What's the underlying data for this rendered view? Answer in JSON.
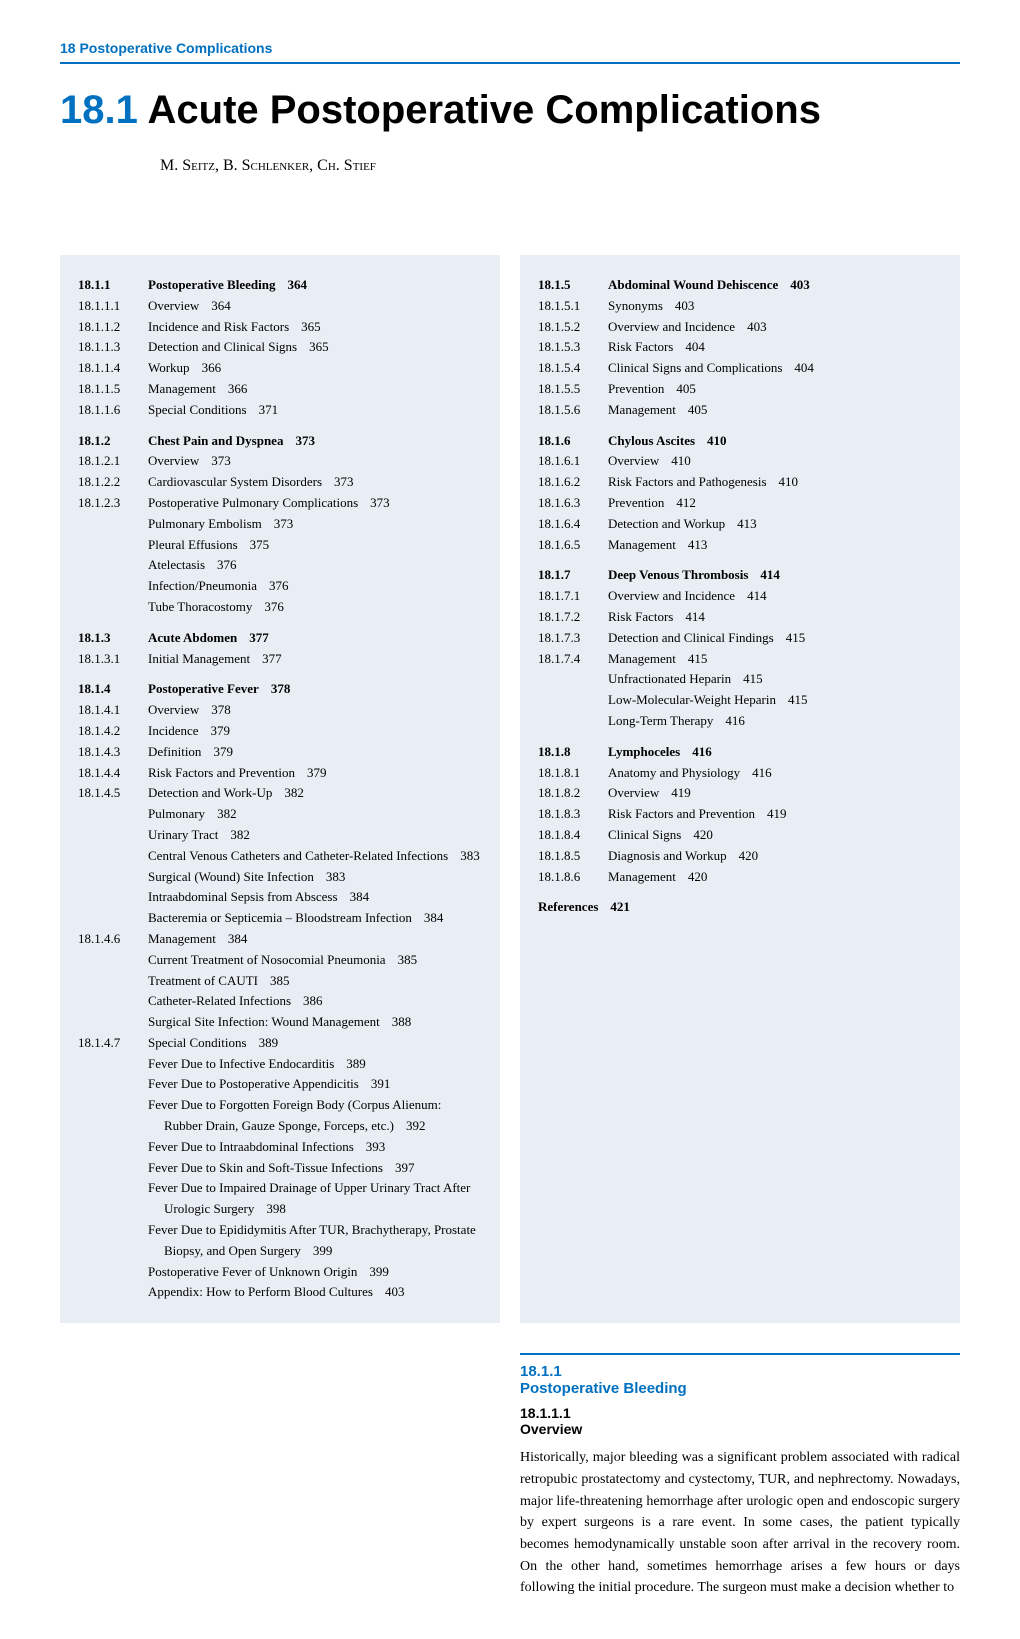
{
  "header": {
    "label": "18 Postoperative Complications"
  },
  "chapter": {
    "number": "18.1",
    "title": "Acute Postoperative Complications",
    "authors": "M. Seitz, B. Schlenker, Ch. Stief"
  },
  "toc_left": [
    {
      "num": "18.1.1",
      "text": "Postoperative Bleeding",
      "page": "364",
      "bold": true
    },
    {
      "num": "18.1.1.1",
      "text": "Overview",
      "page": "364"
    },
    {
      "num": "18.1.1.2",
      "text": "Incidence and Risk Factors",
      "page": "365"
    },
    {
      "num": "18.1.1.3",
      "text": "Detection and Clinical Signs",
      "page": "365"
    },
    {
      "num": "18.1.1.4",
      "text": "Workup",
      "page": "366"
    },
    {
      "num": "18.1.1.5",
      "text": "Management",
      "page": "366"
    },
    {
      "num": "18.1.1.6",
      "text": "Special Conditions",
      "page": "371"
    },
    {
      "spacer": true
    },
    {
      "num": "18.1.2",
      "text": "Chest Pain and Dyspnea",
      "page": "373",
      "bold": true
    },
    {
      "num": "18.1.2.1",
      "text": "Overview",
      "page": "373"
    },
    {
      "num": "18.1.2.2",
      "text": "Cardiovascular System Disorders",
      "page": "373"
    },
    {
      "num": "18.1.2.3",
      "text": "Postoperative Pulmonary Complications",
      "page": "373"
    },
    {
      "num": "",
      "text": "Pulmonary Embolism",
      "page": "373"
    },
    {
      "num": "",
      "text": "Pleural Effusions",
      "page": "375"
    },
    {
      "num": "",
      "text": "Atelectasis",
      "page": "376"
    },
    {
      "num": "",
      "text": "Infection/Pneumonia",
      "page": "376"
    },
    {
      "num": "",
      "text": "Tube Thoracostomy",
      "page": "376"
    },
    {
      "spacer": true
    },
    {
      "num": "18.1.3",
      "text": "Acute Abdomen",
      "page": "377",
      "bold": true
    },
    {
      "num": "18.1.3.1",
      "text": "Initial Management",
      "page": "377"
    },
    {
      "spacer": true
    },
    {
      "num": "18.1.4",
      "text": "Postoperative Fever",
      "page": "378",
      "bold": true
    },
    {
      "num": "18.1.4.1",
      "text": "Overview",
      "page": "378"
    },
    {
      "num": "18.1.4.2",
      "text": "Incidence",
      "page": "379"
    },
    {
      "num": "18.1.4.3",
      "text": "Definition",
      "page": "379"
    },
    {
      "num": "18.1.4.4",
      "text": "Risk Factors and Prevention",
      "page": "379"
    },
    {
      "num": "18.1.4.5",
      "text": "Detection and Work-Up",
      "page": "382"
    },
    {
      "num": "",
      "text": "Pulmonary",
      "page": "382"
    },
    {
      "num": "",
      "text": "Urinary Tract",
      "page": "382"
    },
    {
      "num": "",
      "text": "Central Venous Catheters and Catheter-Related Infections",
      "page": "383",
      "indent": true
    },
    {
      "num": "",
      "text": "Surgical (Wound) Site Infection",
      "page": "383"
    },
    {
      "num": "",
      "text": "Intraabdominal Sepsis from Abscess",
      "page": "384"
    },
    {
      "num": "",
      "text": "Bacteremia or Septicemia – Bloodstream Infection",
      "page": "384",
      "indent": true
    },
    {
      "num": "18.1.4.6",
      "text": "Management",
      "page": "384"
    },
    {
      "num": "",
      "text": "Current Treatment of Nosocomial Pneumonia",
      "page": "385",
      "indent": true
    },
    {
      "num": "",
      "text": "Treatment of CAUTI",
      "page": "385"
    },
    {
      "num": "",
      "text": "Catheter-Related Infections",
      "page": "386"
    },
    {
      "num": "",
      "text": "Surgical Site Infection: Wound Management",
      "page": "388"
    },
    {
      "num": "18.1.4.7",
      "text": "Special Conditions",
      "page": "389"
    },
    {
      "num": "",
      "text": "Fever Due to Infective Endocarditis",
      "page": "389"
    },
    {
      "num": "",
      "text": "Fever Due to Postoperative Appendicitis",
      "page": "391"
    },
    {
      "num": "",
      "text": "Fever Due to Forgotten Foreign Body (Corpus Alienum: Rubber Drain, Gauze Sponge, Forceps, etc.)",
      "page": "392",
      "indent": true
    },
    {
      "num": "",
      "text": "Fever Due to Intraabdominal Infections",
      "page": "393"
    },
    {
      "num": "",
      "text": "Fever Due to Skin and Soft-Tissue Infections",
      "page": "397"
    },
    {
      "num": "",
      "text": "Fever Due to Impaired Drainage of Upper Urinary Tract After Urologic Surgery",
      "page": "398",
      "indent": true
    },
    {
      "num": "",
      "text": "Fever Due to Epididymitis After TUR, Brachytherapy, Prostate Biopsy, and Open Surgery",
      "page": "399",
      "indent": true
    },
    {
      "num": "",
      "text": "Postoperative Fever of Unknown Origin",
      "page": "399"
    },
    {
      "num": "",
      "text": "Appendix: How to Perform Blood Cultures",
      "page": "403"
    }
  ],
  "toc_right": [
    {
      "num": "18.1.5",
      "text": "Abdominal Wound Dehiscence",
      "page": "403",
      "bold": true
    },
    {
      "num": "18.1.5.1",
      "text": "Synonyms",
      "page": "403"
    },
    {
      "num": "18.1.5.2",
      "text": "Overview and Incidence",
      "page": "403"
    },
    {
      "num": "18.1.5.3",
      "text": "Risk Factors",
      "page": "404"
    },
    {
      "num": "18.1.5.4",
      "text": "Clinical Signs and Complications",
      "page": "404"
    },
    {
      "num": "18.1.5.5",
      "text": "Prevention",
      "page": "405"
    },
    {
      "num": "18.1.5.6",
      "text": "Management",
      "page": "405"
    },
    {
      "spacer": true
    },
    {
      "num": "18.1.6",
      "text": "Chylous Ascites",
      "page": "410",
      "bold": true
    },
    {
      "num": "18.1.6.1",
      "text": "Overview",
      "page": "410"
    },
    {
      "num": "18.1.6.2",
      "text": "Risk Factors and Pathogenesis",
      "page": "410"
    },
    {
      "num": "18.1.6.3",
      "text": "Prevention",
      "page": "412"
    },
    {
      "num": "18.1.6.4",
      "text": "Detection and Workup",
      "page": "413"
    },
    {
      "num": "18.1.6.5",
      "text": "Management",
      "page": "413"
    },
    {
      "spacer": true
    },
    {
      "num": "18.1.7",
      "text": "Deep Venous Thrombosis",
      "page": "414",
      "bold": true
    },
    {
      "num": "18.1.7.1",
      "text": "Overview and Incidence",
      "page": "414"
    },
    {
      "num": "18.1.7.2",
      "text": "Risk Factors",
      "page": "414"
    },
    {
      "num": "18.1.7.3",
      "text": "Detection and Clinical Findings",
      "page": "415"
    },
    {
      "num": "18.1.7.4",
      "text": "Management",
      "page": "415"
    },
    {
      "num": "",
      "text": "Unfractionated Heparin",
      "page": "415"
    },
    {
      "num": "",
      "text": "Low-Molecular-Weight Heparin",
      "page": "415"
    },
    {
      "num": "",
      "text": "Long-Term Therapy",
      "page": "416"
    },
    {
      "spacer": true
    },
    {
      "num": "18.1.8",
      "text": "Lymphoceles",
      "page": "416",
      "bold": true
    },
    {
      "num": "18.1.8.1",
      "text": "Anatomy and Physiology",
      "page": "416"
    },
    {
      "num": "18.1.8.2",
      "text": "Overview",
      "page": "419"
    },
    {
      "num": "18.1.8.3",
      "text": "Risk Factors and Prevention",
      "page": "419"
    },
    {
      "num": "18.1.8.4",
      "text": "Clinical Signs",
      "page": "420"
    },
    {
      "num": "18.1.8.5",
      "text": "Diagnosis and Workup",
      "page": "420"
    },
    {
      "num": "18.1.8.6",
      "text": "Management",
      "page": "420"
    }
  ],
  "references": {
    "label": "References",
    "page": "421"
  },
  "section": {
    "num": "18.1.1",
    "title": "Postoperative Bleeding",
    "sub_num": "18.1.1.1",
    "sub_title": "Overview",
    "body": "Historically, major bleeding was a significant problem associated with radical retropubic prostatectomy and cystectomy, TUR, and nephrectomy. Nowadays, major life-threatening hemorrhage after urologic open and endoscopic surgery by expert surgeons is a rare event. In some cases, the patient typically becomes hemodynamically unstable soon after arrival in the recovery room. On the other hand, sometimes hemorrhage arises a few hours or days following the initial procedure. The surgeon must make a decision whether to"
  }
}
